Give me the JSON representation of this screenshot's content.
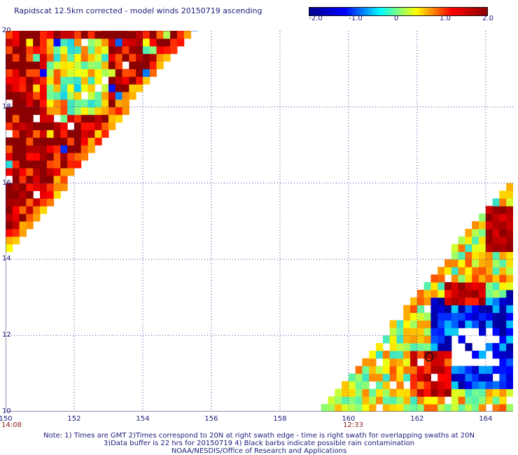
{
  "title": "Rapidscat 12.5km corrected - model winds 20150719 ascending",
  "colorbar": {
    "labels": [
      "-2.0",
      "-1.0",
      "0",
      "1.0",
      "2.0"
    ],
    "colors": [
      "#00008b",
      "#0000ff",
      "#00ffff",
      "#ffff00",
      "#ff0000",
      "#8b0000"
    ]
  },
  "y_labels": [
    "20",
    "18",
    "16",
    "14",
    "12",
    "10"
  ],
  "x_labels": [
    "150",
    "152",
    "154",
    "156",
    "158",
    "160",
    "162",
    "164"
  ],
  "times": {
    "left": "14:08",
    "right": "12:33"
  },
  "notes": [
    "Note: 1) Times are GMT 2)Times correspond to 20N at right swath edge - time is right swath for overlapping swaths at 20N",
    "3)Data buffer is 22 hrs for 20150719 4) Black barbs indicate possible rain contamination",
    "NOAA/NESDIS/Office of Research and Applications"
  ],
  "chart_data": {
    "type": "heatmap",
    "title": "Rapidscat 12.5km corrected - model winds 20150719 ascending",
    "xlim": [
      150,
      164.8
    ],
    "ylim": [
      10,
      20
    ],
    "x_ticks": [
      150,
      152,
      154,
      156,
      158,
      160,
      162,
      164
    ],
    "y_ticks": [
      10,
      12,
      14,
      16,
      18,
      20
    ],
    "color_range": [
      -2.0,
      2.0
    ],
    "grid": true,
    "swaths": [
      {
        "time": "14:08",
        "edge": [
          [
            150,
            20
          ],
          [
            155.6,
            20
          ],
          [
            150,
            13.8
          ]
        ]
      },
      {
        "time": "12:33",
        "edge": [
          [
            159.2,
            10
          ],
          [
            164.8,
            16.2
          ],
          [
            164.8,
            10
          ]
        ]
      }
    ]
  }
}
